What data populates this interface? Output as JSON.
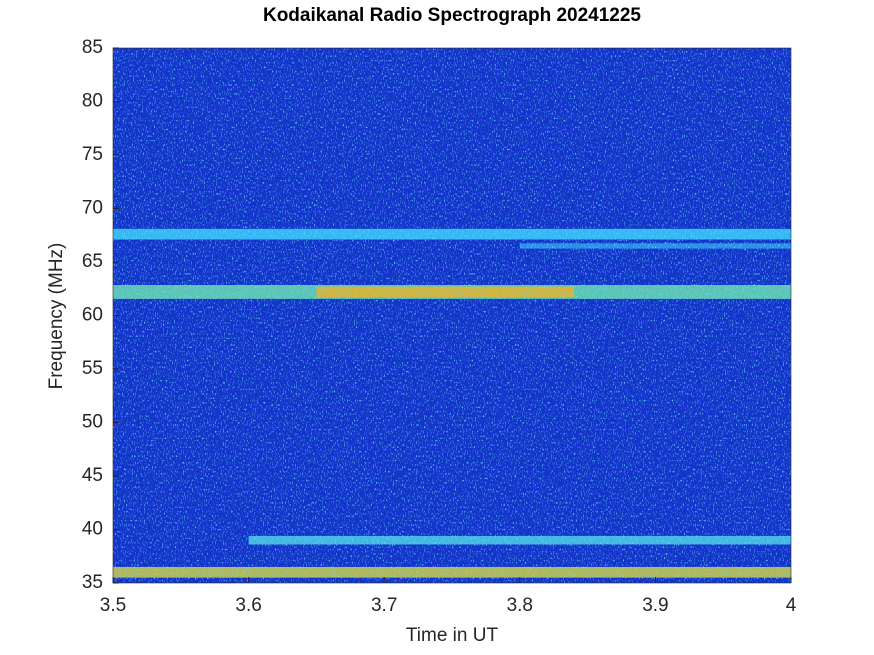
{
  "chart_data": {
    "type": "spectrogram",
    "title": "Kodaikanal Radio Spectrograph  20241225",
    "x_label": "Time in UT",
    "y_label": "Frequency (MHz)",
    "xlim": [
      3.5,
      4
    ],
    "xticks": [
      3.5,
      3.6,
      3.7,
      3.8,
      3.9,
      4
    ],
    "ylim": [
      35,
      85
    ],
    "yticks": [
      35,
      40,
      45,
      50,
      55,
      60,
      65,
      70,
      75,
      80,
      85
    ],
    "background_color": "#1233cc",
    "bands": [
      {
        "freq": 67.6,
        "width": 1.0,
        "t": [
          3.5,
          4
        ],
        "color": "#3fd8ff"
      },
      {
        "freq": 66.5,
        "width": 0.5,
        "t": [
          3.8,
          4
        ],
        "color": "#2fa8ee"
      },
      {
        "freq": 62.2,
        "width": 1.3,
        "t": [
          3.5,
          4
        ],
        "color": "#6fe8b0"
      },
      {
        "freq": 62.2,
        "width": 1.0,
        "t": [
          3.65,
          3.84
        ],
        "color": "#f0b020"
      },
      {
        "freq": 39.0,
        "width": 0.8,
        "t": [
          3.6,
          4
        ],
        "color": "#50d8e8"
      },
      {
        "freq": 36.0,
        "width": 1.0,
        "t": [
          3.5,
          4
        ],
        "color": "#d8d840"
      }
    ]
  }
}
